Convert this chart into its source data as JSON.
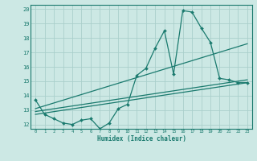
{
  "bg_color": "#cce8e4",
  "grid_color": "#aacfcb",
  "line_color": "#1a7a6e",
  "xlabel": "Humidex (Indice chaleur)",
  "xlim": [
    -0.5,
    23.5
  ],
  "ylim": [
    11.7,
    20.3
  ],
  "yticks": [
    12,
    13,
    14,
    15,
    16,
    17,
    18,
    19,
    20
  ],
  "xticks": [
    0,
    1,
    2,
    3,
    4,
    5,
    6,
    7,
    8,
    9,
    10,
    11,
    12,
    13,
    14,
    15,
    16,
    17,
    18,
    19,
    20,
    21,
    22,
    23
  ],
  "series_jagged": {
    "x": [
      0,
      1,
      2,
      3,
      4,
      5,
      6,
      7,
      8,
      9,
      10,
      11,
      12,
      13,
      14,
      15,
      16,
      17,
      18,
      19,
      20,
      21,
      22,
      23
    ],
    "y": [
      13.7,
      12.7,
      12.4,
      12.1,
      12.0,
      12.3,
      12.4,
      11.7,
      12.1,
      13.1,
      13.4,
      15.4,
      15.9,
      17.3,
      18.5,
      15.5,
      19.9,
      19.8,
      18.7,
      17.7,
      15.2,
      15.1,
      14.9,
      14.9
    ]
  },
  "series_line1": {
    "x": [
      0,
      23
    ],
    "y": [
      13.1,
      17.6
    ]
  },
  "series_line2": {
    "x": [
      0,
      23
    ],
    "y": [
      12.9,
      15.1
    ]
  },
  "series_line3": {
    "x": [
      0,
      23
    ],
    "y": [
      12.7,
      14.9
    ]
  }
}
